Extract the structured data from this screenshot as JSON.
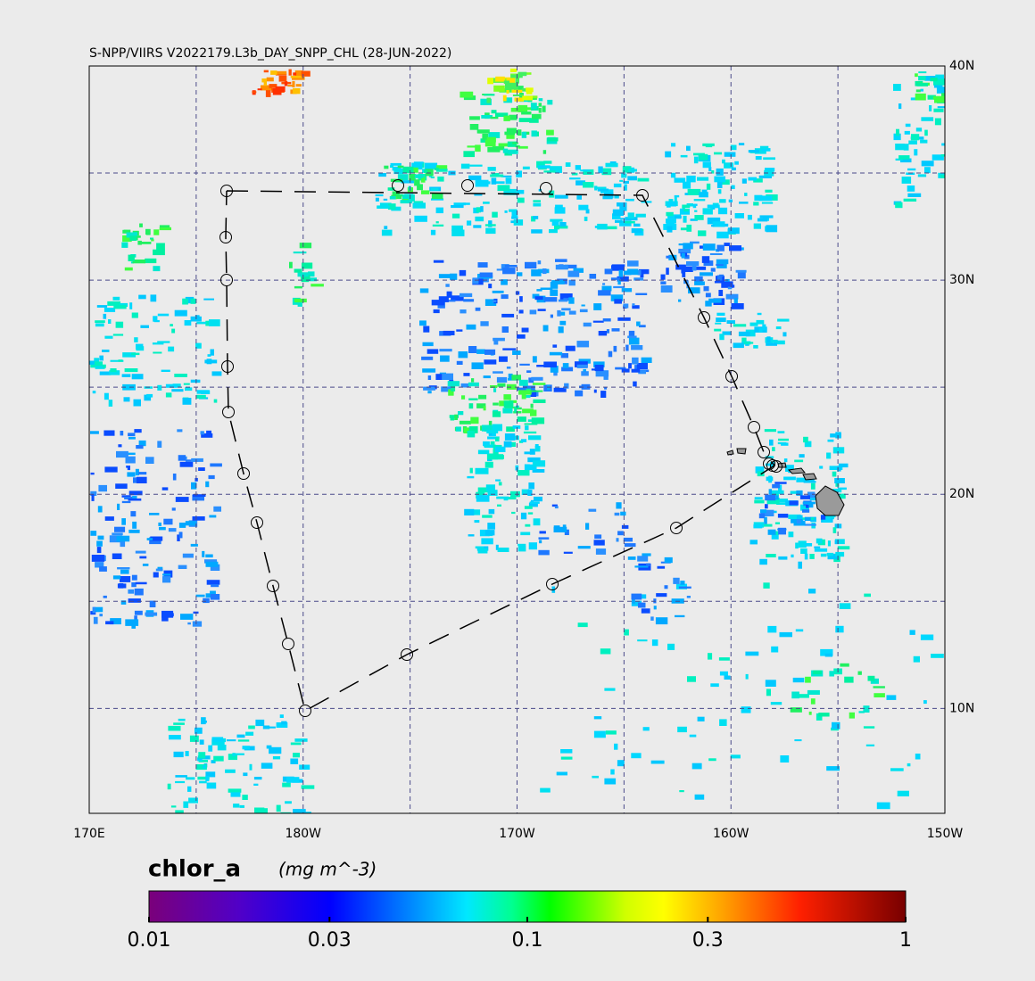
{
  "title": "S-NPP/VIIRS V2022179.L3b_DAY_SNPP_CHL (28-JUN-2022)",
  "map": {
    "lonlim": [
      170,
      210
    ],
    "latlim": [
      5.1,
      40
    ],
    "lat_ticks": [
      {
        "value": 40,
        "label": "40N"
      },
      {
        "value": 30,
        "label": "30N"
      },
      {
        "value": 20,
        "label": "20N"
      },
      {
        "value": 10,
        "label": "10N"
      }
    ],
    "lon_ticks": [
      {
        "value": 170,
        "label": "170E"
      },
      {
        "value": 180,
        "label": "180W"
      },
      {
        "value": 190,
        "label": "170W"
      },
      {
        "value": 200,
        "label": "160W"
      },
      {
        "value": 210,
        "label": "150W"
      }
    ]
  },
  "colorbar": {
    "title": "chlor_a",
    "units": "(mg m^-3)",
    "log": true,
    "range": [
      0.01,
      1
    ],
    "ticks": [
      0.01,
      0.03,
      0.1,
      0.3,
      1
    ]
  }
}
